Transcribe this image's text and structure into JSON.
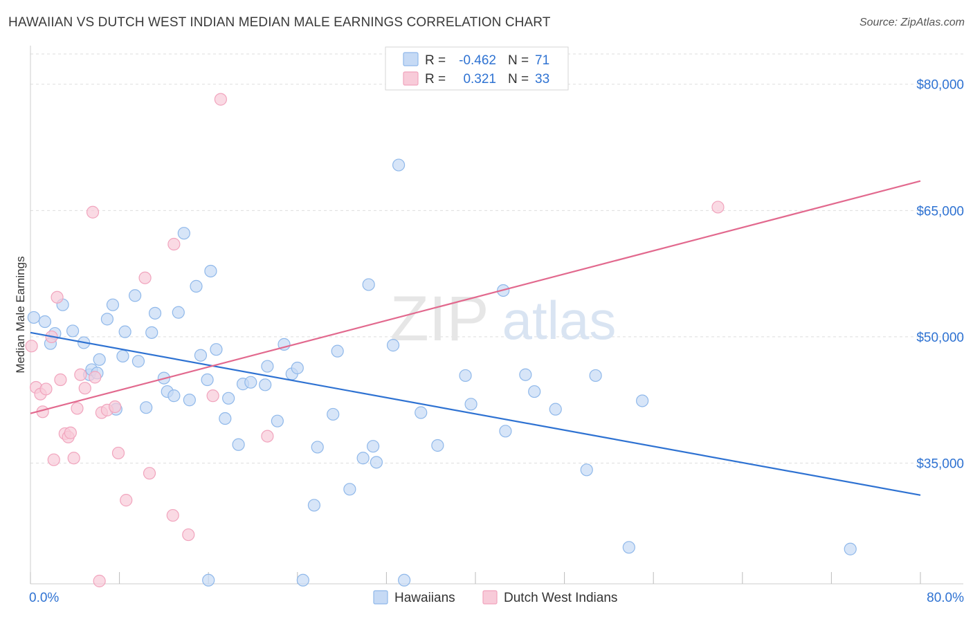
{
  "chart_data": {
    "type": "scatter",
    "title": "HAWAIIAN VS DUTCH WEST INDIAN MEDIAN MALE EARNINGS CORRELATION CHART",
    "source": "Source: ZipAtlas.com",
    "xlabel": "",
    "ylabel": "Median Male Earnings",
    "xlim": [
      0,
      80
    ],
    "ylim": [
      21000,
      84000
    ],
    "x_tick_labels": [
      {
        "value": 0,
        "label": "0.0%"
      },
      {
        "value": 80,
        "label": "80.0%"
      }
    ],
    "y_ticks": [
      {
        "value": 35000,
        "label": "$35,000"
      },
      {
        "value": 50000,
        "label": "$50,000"
      },
      {
        "value": 65000,
        "label": "$65,000"
      },
      {
        "value": 80000,
        "label": "$80,000"
      }
    ],
    "x_minor_ticks": [
      0,
      8,
      16,
      24,
      32,
      40,
      48,
      56,
      64,
      72,
      80
    ],
    "watermark": {
      "left": "ZIP",
      "right": "atlas"
    },
    "legend_stats": [
      {
        "series": "Hawaiians",
        "r_label": "R =",
        "r_value": "-0.462",
        "n_label": "N =",
        "n_value": "71"
      },
      {
        "series": "Dutch West Indians",
        "r_label": "R =",
        "r_value": "0.321",
        "n_label": "N =",
        "n_value": "33"
      }
    ],
    "series": [
      {
        "name": "Hawaiians",
        "color": "#8fb8ea",
        "fill": "#c6daf5",
        "line_color": "#2e72d2",
        "trend": {
          "x0": 0,
          "y0": 50500,
          "x1": 80,
          "y1": 31200
        },
        "points": [
          [
            0.3,
            52300
          ],
          [
            1.3,
            51800
          ],
          [
            1.8,
            49200
          ],
          [
            2.2,
            50400
          ],
          [
            2.9,
            53800
          ],
          [
            3.8,
            50700
          ],
          [
            4.8,
            49300
          ],
          [
            5.3,
            45500
          ],
          [
            5.5,
            46100
          ],
          [
            6.0,
            45700
          ],
          [
            6.2,
            47300
          ],
          [
            6.9,
            52100
          ],
          [
            7.4,
            53800
          ],
          [
            7.7,
            41400
          ],
          [
            8.3,
            47700
          ],
          [
            8.5,
            50600
          ],
          [
            9.4,
            54900
          ],
          [
            9.7,
            47100
          ],
          [
            10.4,
            41600
          ],
          [
            10.9,
            50500
          ],
          [
            11.2,
            52800
          ],
          [
            12.0,
            45100
          ],
          [
            12.3,
            43500
          ],
          [
            12.9,
            43000
          ],
          [
            13.3,
            52900
          ],
          [
            13.8,
            62300
          ],
          [
            14.3,
            42500
          ],
          [
            14.9,
            56000
          ],
          [
            15.3,
            47800
          ],
          [
            15.9,
            44900
          ],
          [
            16.2,
            57800
          ],
          [
            16.7,
            48500
          ],
          [
            17.5,
            40300
          ],
          [
            17.8,
            42700
          ],
          [
            18.7,
            37200
          ],
          [
            19.1,
            44400
          ],
          [
            19.8,
            44600
          ],
          [
            21.1,
            44300
          ],
          [
            21.3,
            46500
          ],
          [
            22.2,
            40000
          ],
          [
            22.8,
            49100
          ],
          [
            23.5,
            45600
          ],
          [
            24.0,
            46300
          ],
          [
            24.5,
            21100
          ],
          [
            25.5,
            30000
          ],
          [
            25.8,
            36900
          ],
          [
            27.2,
            40800
          ],
          [
            27.6,
            48300
          ],
          [
            28.7,
            31900
          ],
          [
            29.9,
            35600
          ],
          [
            30.4,
            56200
          ],
          [
            30.8,
            37000
          ],
          [
            31.1,
            35100
          ],
          [
            32.6,
            49000
          ],
          [
            33.1,
            70400
          ],
          [
            35.1,
            41000
          ],
          [
            36.6,
            37100
          ],
          [
            39.1,
            45400
          ],
          [
            39.6,
            42000
          ],
          [
            42.5,
            55500
          ],
          [
            42.7,
            38800
          ],
          [
            45.3,
            43500
          ],
          [
            47.2,
            41400
          ],
          [
            50.0,
            34200
          ],
          [
            50.8,
            45400
          ],
          [
            53.8,
            25000
          ],
          [
            55.0,
            42400
          ],
          [
            73.7,
            24800
          ],
          [
            44.5,
            45500
          ],
          [
            16.0,
            21100
          ],
          [
            33.6,
            21100
          ]
        ]
      },
      {
        "name": "Dutch West Indians",
        "color": "#f1a4bd",
        "fill": "#f8cbd9",
        "line_color": "#e2698e",
        "trend": {
          "x0": 0,
          "y0": 40900,
          "x1": 80,
          "y1": 68500
        },
        "points": [
          [
            0.1,
            48900
          ],
          [
            0.5,
            44000
          ],
          [
            0.9,
            43200
          ],
          [
            1.1,
            41100
          ],
          [
            1.4,
            43800
          ],
          [
            1.9,
            50000
          ],
          [
            2.1,
            35400
          ],
          [
            2.4,
            54700
          ],
          [
            2.7,
            44900
          ],
          [
            3.1,
            38500
          ],
          [
            3.4,
            38100
          ],
          [
            3.6,
            38600
          ],
          [
            3.9,
            35600
          ],
          [
            4.2,
            41500
          ],
          [
            4.5,
            45500
          ],
          [
            4.9,
            43900
          ],
          [
            5.6,
            64800
          ],
          [
            5.8,
            45200
          ],
          [
            6.2,
            21000
          ],
          [
            6.4,
            41000
          ],
          [
            6.9,
            41300
          ],
          [
            7.6,
            41700
          ],
          [
            7.9,
            36200
          ],
          [
            8.6,
            30600
          ],
          [
            10.3,
            57000
          ],
          [
            10.7,
            33800
          ],
          [
            12.8,
            28800
          ],
          [
            12.9,
            61000
          ],
          [
            14.2,
            26500
          ],
          [
            16.4,
            43000
          ],
          [
            17.1,
            78200
          ],
          [
            21.3,
            38200
          ],
          [
            61.8,
            65400
          ]
        ]
      }
    ]
  }
}
